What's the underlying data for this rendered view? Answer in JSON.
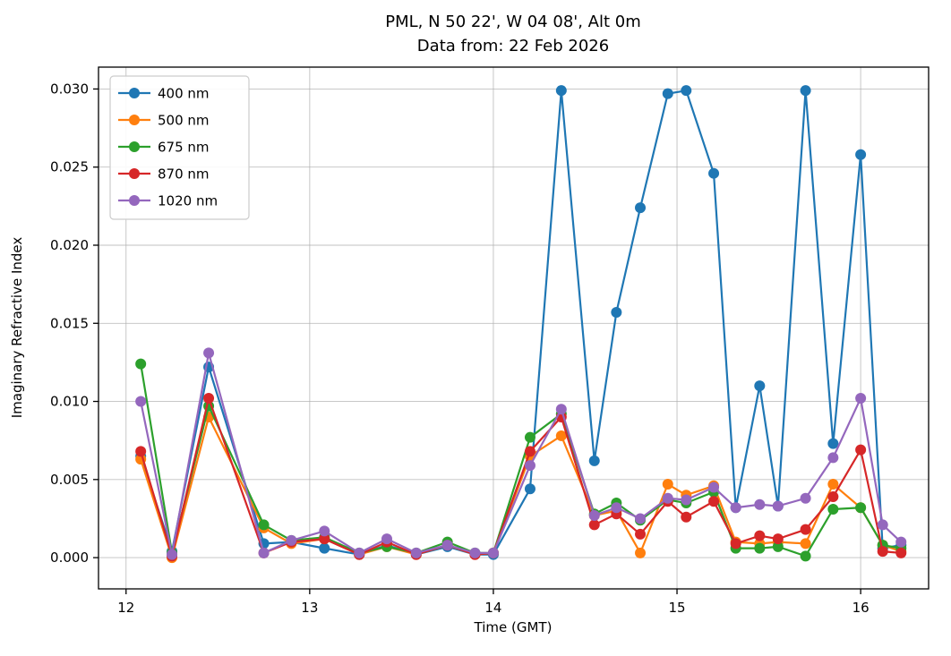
{
  "chart_data": {
    "type": "line",
    "title": "PML, N 50 22', W 04 08', Alt 0m",
    "subtitle": "Data from: 22 Feb 2026",
    "xlabel": "Time (GMT)",
    "ylabel": "Imaginary Refractive Index",
    "xlim": [
      11.85,
      16.37
    ],
    "ylim": [
      -0.002,
      0.0314
    ],
    "xticks": [
      12,
      13,
      14,
      15,
      16
    ],
    "yticks": [
      0.0,
      0.005,
      0.01,
      0.015,
      0.02,
      0.025,
      0.03
    ],
    "ytick_labels": [
      "0.000",
      "0.005",
      "0.010",
      "0.015",
      "0.020",
      "0.025",
      "0.030"
    ],
    "grid": true,
    "grid_color": "#b0b0b0",
    "legend_position": "upper left",
    "marker": "circle",
    "x": [
      12.08,
      12.25,
      12.45,
      12.75,
      12.9,
      13.08,
      13.27,
      13.42,
      13.58,
      13.75,
      13.9,
      14.0,
      14.2,
      14.37,
      14.55,
      14.67,
      14.8,
      14.95,
      15.05,
      15.2,
      15.32,
      15.45,
      15.55,
      15.7,
      15.85,
      16.0,
      16.12,
      16.22
    ],
    "series": [
      {
        "name": "400 nm",
        "color": "#1f77b4",
        "values": [
          0.0065,
          0.0004,
          0.0122,
          0.0009,
          0.001,
          0.0006,
          0.0002,
          0.0008,
          0.0002,
          0.0007,
          0.0002,
          0.0002,
          0.0044,
          0.0299,
          0.0062,
          0.0157,
          0.0224,
          0.0297,
          0.0299,
          0.0246,
          0.0032,
          0.011,
          0.0033,
          0.0299,
          0.0073,
          0.0258,
          0.0006,
          0.0008
        ]
      },
      {
        "name": "500 nm",
        "color": "#ff7f0e",
        "values": [
          0.0063,
          0.0,
          0.009,
          0.0019,
          0.0009,
          0.0012,
          0.0002,
          0.0007,
          0.0002,
          0.0008,
          0.0002,
          0.0003,
          0.0065,
          0.0078,
          0.0027,
          0.003,
          0.0003,
          0.0047,
          0.004,
          0.0046,
          0.001,
          0.0009,
          0.001,
          0.0009,
          0.0047,
          0.0032,
          0.0008,
          0.0004
        ]
      },
      {
        "name": "675 nm",
        "color": "#2ca02c",
        "values": [
          0.0124,
          0.0003,
          0.0097,
          0.0021,
          0.0011,
          0.0013,
          0.0003,
          0.0007,
          0.0003,
          0.001,
          0.0003,
          0.0003,
          0.0077,
          0.0092,
          0.0028,
          0.0035,
          0.0024,
          0.0037,
          0.0035,
          0.0042,
          0.0006,
          0.0006,
          0.0007,
          0.0001,
          0.0031,
          0.0032,
          0.0008,
          0.0006
        ]
      },
      {
        "name": "870 nm",
        "color": "#d62728",
        "values": [
          0.0068,
          0.0001,
          0.0102,
          0.0003,
          0.001,
          0.0012,
          0.0002,
          0.001,
          0.0002,
          0.0008,
          0.0002,
          0.0003,
          0.0068,
          0.009,
          0.0021,
          0.0028,
          0.0015,
          0.0036,
          0.0026,
          0.0036,
          0.0009,
          0.0014,
          0.0012,
          0.0018,
          0.0039,
          0.0069,
          0.0004,
          0.0003
        ]
      },
      {
        "name": "1020 nm",
        "color": "#9467bd",
        "values": [
          0.01,
          0.0002,
          0.0131,
          0.0003,
          0.0011,
          0.0017,
          0.0003,
          0.0012,
          0.0003,
          0.0008,
          0.0003,
          0.0003,
          0.0059,
          0.0095,
          0.0027,
          0.0032,
          0.0025,
          0.0038,
          0.0037,
          0.0045,
          0.0032,
          0.0034,
          0.0033,
          0.0038,
          0.0064,
          0.0102,
          0.0021,
          0.001
        ]
      }
    ]
  }
}
